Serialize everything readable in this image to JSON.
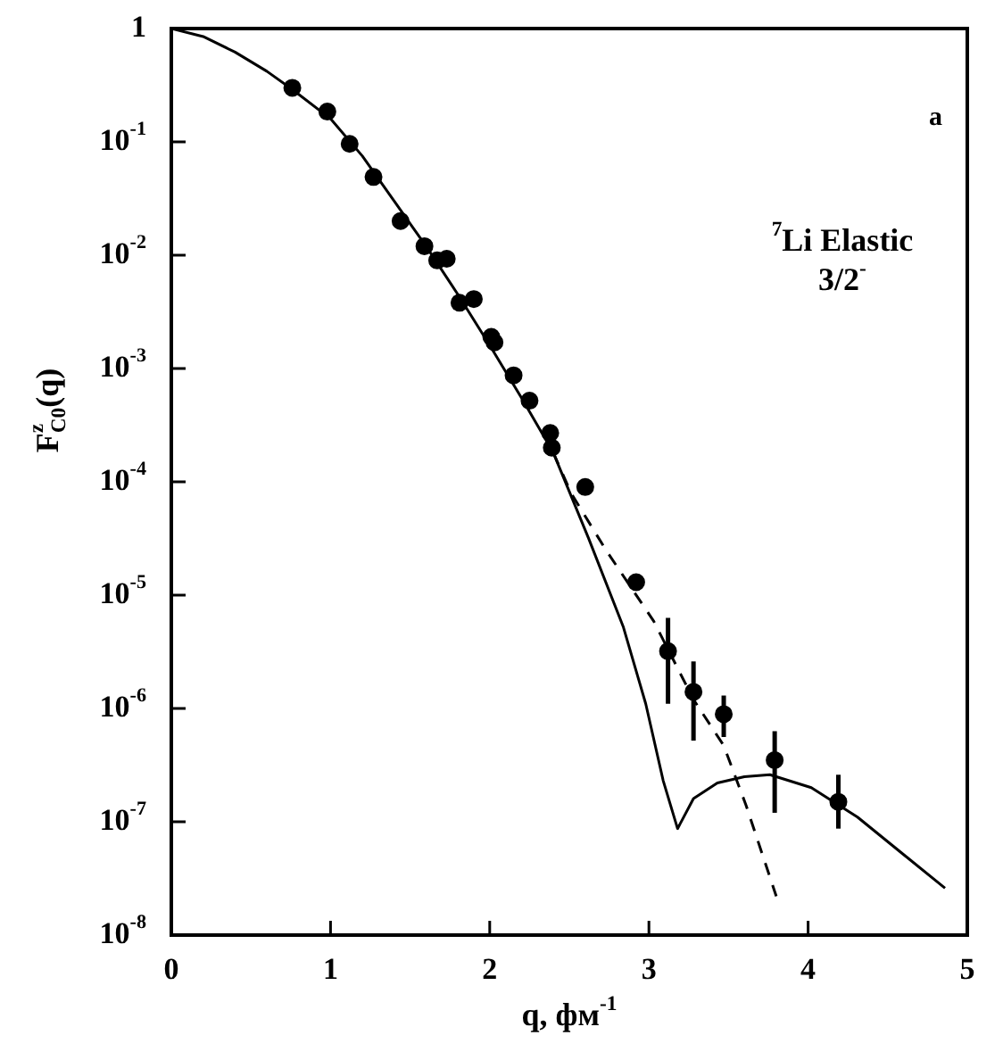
{
  "chart_data": {
    "type": "scatter",
    "xlabel": "q, фм$^{-1}$",
    "ylabel": "F$^{z}$$_{C0}$(q)",
    "annotations": [
      "a",
      "$^{7}$Li Elastic",
      "3/2$^{-}$"
    ],
    "xlim": [
      0,
      5
    ],
    "xticks": [
      0,
      1,
      2,
      3,
      4,
      5
    ],
    "ylim": [
      1e-08,
      1
    ],
    "log": "y",
    "yticks": [
      1,
      {
        "value": 0.1,
        "label": "10$^{-1}$"
      },
      {
        "value": 0.01,
        "label": "10$^{-2}$"
      },
      {
        "value": 0.001,
        "label": "10$^{-3}$"
      },
      {
        "value": 0.0001,
        "label": "10$^{-4}$"
      },
      {
        "value": 1e-05,
        "label": "10$^{-5}$"
      },
      {
        "value": 1e-06,
        "label": "10$^{-6}$"
      },
      {
        "value": 1e-07,
        "label": "10$^{-7}$"
      },
      {
        "value": 1e-08,
        "label": "10$^{-8}$"
      }
    ],
    "grid": false,
    "legend": false,
    "series": [
      {
        "marker": "circle",
        "color": "#000000",
        "x": [
          0.76,
          0.98,
          1.12,
          1.27,
          1.44,
          1.59,
          1.67,
          1.73,
          1.81,
          1.9,
          2.01,
          2.03,
          2.15,
          2.25,
          2.38,
          2.39,
          2.6,
          2.92,
          3.12,
          3.28,
          3.47,
          3.79,
          4.19
        ],
        "values": [
          0.3,
          0.185,
          0.096,
          0.049,
          0.02,
          0.012,
          0.009,
          0.0093,
          0.0038,
          0.0041,
          0.0019,
          0.0017,
          0.00087,
          0.00052,
          0.00027,
          0.0002,
          9e-05,
          1.3e-05,
          3.2e-06,
          1.4e-06,
          8.9e-07,
          3.5e-07,
          1.5e-07
        ],
        "errors": [
          null,
          null,
          null,
          null,
          null,
          null,
          null,
          null,
          null,
          null,
          null,
          null,
          null,
          null,
          null,
          null,
          null,
          null,
          [
            1.1e-06,
            6.3e-06
          ],
          [
            5.2e-07,
            2.6e-06
          ],
          [
            5.6e-07,
            1.3e-06
          ],
          [
            1.2e-07,
            6.3e-07
          ],
          [
            8.7e-08,
            2.6e-07
          ]
        ]
      },
      {
        "type": "line",
        "marker": "none",
        "line_style": "solid",
        "color": "#000000",
        "x": [
          0,
          0.2,
          0.4,
          0.6,
          0.76,
          1.0,
          1.2,
          1.4,
          1.6,
          1.8,
          2.0,
          2.2,
          2.4,
          2.62,
          2.84,
          2.98,
          3.09,
          3.18,
          3.28,
          3.43,
          3.6,
          3.76,
          4.02,
          4.31,
          4.61,
          4.86
        ],
        "values": [
          1,
          0.85,
          0.62,
          0.42,
          0.29,
          0.16,
          0.075,
          0.03,
          0.012,
          0.0045,
          0.0016,
          0.00055,
          0.00018,
          3.2e-05,
          5.2e-06,
          1.1e-06,
          2.3e-07,
          8.7e-08,
          1.6e-07,
          2.2e-07,
          2.5e-07,
          2.6e-07,
          2e-07,
          1.1e-07,
          5e-08,
          2.6e-08
        ]
      },
      {
        "type": "line",
        "marker": "none",
        "line_style": "dashed",
        "color": "#000000",
        "x": [
          2.4,
          2.51,
          2.73,
          3.03,
          3.28,
          3.47,
          3.61,
          3.8
        ],
        "values": [
          0.00018,
          8e-05,
          2.5e-05,
          5.9e-06,
          1.2e-06,
          4.7e-07,
          1.4e-07,
          2.2e-08
        ]
      }
    ]
  }
}
